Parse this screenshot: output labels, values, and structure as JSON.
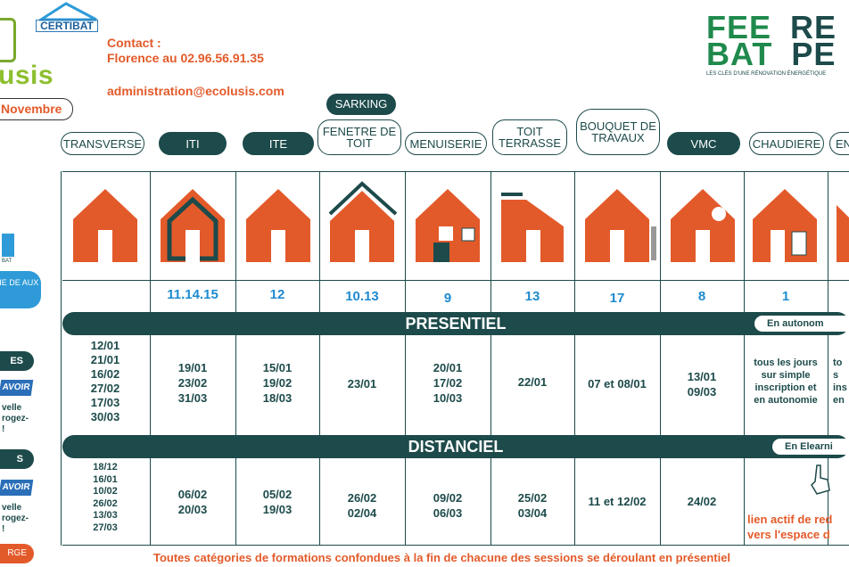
{
  "header": {
    "logo_text": "usis",
    "certibat": "CERTIBAT",
    "month": "Novembre",
    "contact_line1": "Contact :",
    "contact_line2": "Florence au 02.96.56.91.35",
    "email": "administration@ecolusis.com",
    "feebat_line1a": "FEE",
    "feebat_line1b": "RE",
    "feebat_line2a": "BAT",
    "feebat_line2b": "PE",
    "feebat_tag": "LES CLÉS D'UNE RÉNOVATION ÉNERGÉTIQUE"
  },
  "columns": [
    {
      "label": "TRANSVERSE",
      "count": ""
    },
    {
      "label": "ITI",
      "count": "11.14.15"
    },
    {
      "label": "ITE",
      "count": "12"
    },
    {
      "label": "FENETRE DE TOIT",
      "top_label": "SARKING",
      "count": "10.13"
    },
    {
      "label": "MENUISERIE",
      "count": "9"
    },
    {
      "label": "TOIT TERRASSE",
      "count": "13"
    },
    {
      "label": "BOUQUET DE TRAVAUX",
      "count": "17"
    },
    {
      "label": "VMC",
      "count": "8"
    },
    {
      "label": "CHAUDIERE",
      "count": "1"
    },
    {
      "label": "EN",
      "count": ""
    }
  ],
  "presentiel": {
    "title": "PRESENTIEL",
    "pill": "En autonom",
    "cells": [
      [
        "12/01",
        "21/01",
        "16/02",
        "27/02",
        "17/03",
        "30/03"
      ],
      [
        "19/01",
        "23/02",
        "31/03"
      ],
      [
        "15/01",
        "19/02",
        "18/03"
      ],
      [
        "23/01"
      ],
      [
        "20/01",
        "17/02",
        "10/03"
      ],
      [
        "22/01"
      ],
      [
        "07 et 08/01"
      ],
      [
        "13/01",
        "09/03"
      ],
      [
        "tous les jours",
        "sur simple",
        "inscription et",
        "en autonomie"
      ],
      [
        "to",
        "s",
        "ins",
        "en"
      ]
    ]
  },
  "distanciel": {
    "title": "DISTANCIEL",
    "pill": "En Elearni",
    "cells": [
      [
        "18/12",
        "16/01",
        "10/02",
        "26/02",
        "13/03",
        "27/03"
      ],
      [
        "06/02",
        "20/03"
      ],
      [
        "05/02",
        "19/03"
      ],
      [
        "26/02",
        "02/04"
      ],
      [
        "09/02",
        "06/03"
      ],
      [
        "25/02",
        "03/04"
      ],
      [
        "11 et 12/02"
      ],
      [
        "24/02"
      ],
      [
        "lien actif de red",
        "vers l'espace d"
      ]
    ]
  },
  "sidebar": {
    "label1": "ES",
    "savoir1": "AVOIR",
    "text1": [
      "velle",
      "rogez-",
      "!"
    ],
    "label2": "S",
    "savoir2": "AVOIR",
    "text2": [
      "velle",
      "rogez-",
      "!"
    ],
    "cta": "RGE",
    "blue_text": "RIE DE AUX",
    "cert_text": "BAT"
  },
  "footer": "Toutes catégories de formations confondues à la fin de chacune des sessions se déroulant en présentiel",
  "colors": {
    "accent": "#e35a2a",
    "dark": "#1d4a4a",
    "blue": "#1e8bcf",
    "green": "#8dbf2f"
  }
}
